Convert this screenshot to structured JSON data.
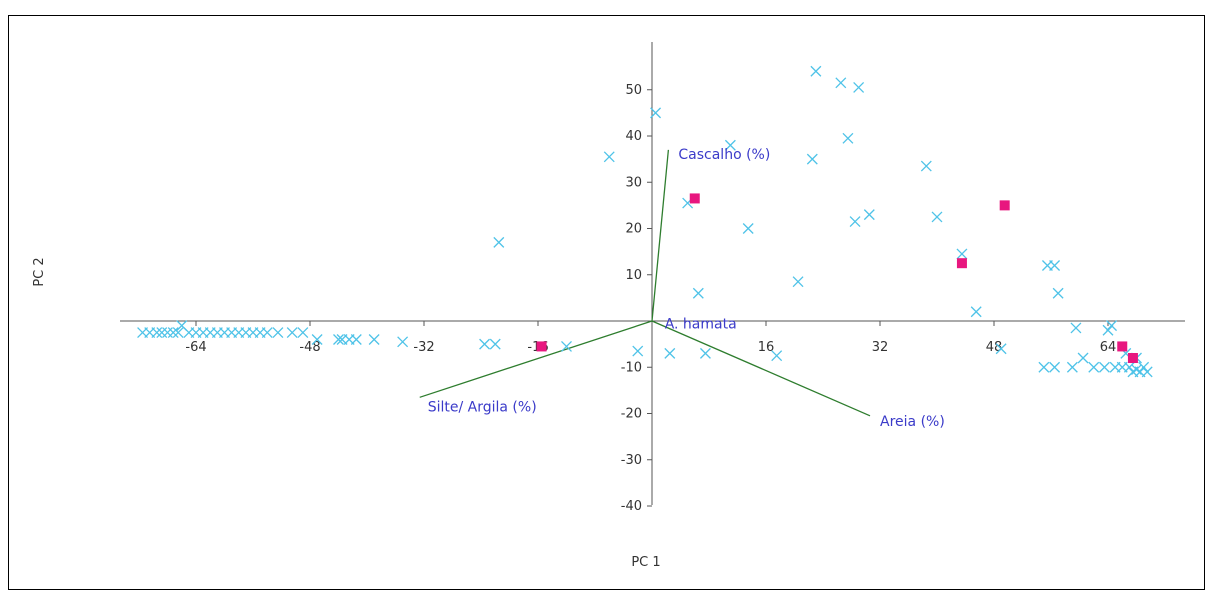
{
  "chart_data": {
    "type": "scatter",
    "xlabel": "PC 1",
    "ylabel": "PC 2",
    "x_ticks": [
      -64,
      -48,
      -32,
      -16,
      16,
      32,
      48,
      64
    ],
    "y_ticks": [
      50,
      40,
      30,
      20,
      10,
      -10,
      -20,
      -30,
      -40
    ],
    "xlim": [
      -75,
      75
    ],
    "ylim": [
      -43,
      60
    ],
    "grid": false,
    "colors": {
      "cross": "#4fc3e8",
      "square": "#e8177f",
      "vector": "#2e7d2e",
      "vector_label": "#3b3bc9"
    },
    "series": [
      {
        "marker": "cross",
        "points": [
          [
            -71.5,
            -2.5
          ],
          [
            -70.5,
            -2.5
          ],
          [
            -69.5,
            -2.5
          ],
          [
            -68.8,
            -2.5
          ],
          [
            -68,
            -2.5
          ],
          [
            -67.2,
            -2.5
          ],
          [
            -66.5,
            -2.5
          ],
          [
            -66,
            -1
          ],
          [
            -65,
            -2.5
          ],
          [
            -64,
            -2.5
          ],
          [
            -63,
            -2.5
          ],
          [
            -62,
            -2.5
          ],
          [
            -61,
            -2.5
          ],
          [
            -60,
            -2.5
          ],
          [
            -59,
            -2.5
          ],
          [
            -58,
            -2.5
          ],
          [
            -57,
            -2.5
          ],
          [
            -56,
            -2.5
          ],
          [
            -55,
            -2.5
          ],
          [
            -54,
            -2.5
          ],
          [
            -52.5,
            -2.5
          ],
          [
            -50.5,
            -2.5
          ],
          [
            -49,
            -2.5
          ],
          [
            -47,
            -4
          ],
          [
            -44,
            -4
          ],
          [
            -43.5,
            -4
          ],
          [
            -42.5,
            -4
          ],
          [
            -41.5,
            -4
          ],
          [
            -39,
            -4
          ],
          [
            -35,
            -4.5
          ],
          [
            -23.5,
            -5
          ],
          [
            -22,
            -5
          ],
          [
            -21.5,
            17
          ],
          [
            -12,
            -5.5
          ],
          [
            -6,
            35.5
          ],
          [
            -2,
            -6.5
          ],
          [
            0.5,
            45
          ],
          [
            2.5,
            -7
          ],
          [
            5,
            25.5
          ],
          [
            6.5,
            6
          ],
          [
            7.5,
            -7
          ],
          [
            11,
            38
          ],
          [
            13.5,
            20
          ],
          [
            17.5,
            -7.5
          ],
          [
            20.5,
            8.5
          ],
          [
            22.5,
            35
          ],
          [
            23,
            54
          ],
          [
            26.5,
            51.5
          ],
          [
            27.5,
            39.5
          ],
          [
            28.5,
            21.5
          ],
          [
            29,
            50.5
          ],
          [
            30.5,
            23
          ],
          [
            38.5,
            33.5
          ],
          [
            40,
            22.5
          ],
          [
            43.5,
            14.5
          ],
          [
            45.5,
            2
          ],
          [
            49,
            -6
          ],
          [
            55,
            -10
          ],
          [
            55.5,
            12
          ],
          [
            56.5,
            -10
          ],
          [
            56.5,
            12
          ],
          [
            57,
            6
          ],
          [
            59,
            -10
          ],
          [
            59.5,
            -1.5
          ],
          [
            60.5,
            -8
          ],
          [
            62,
            -10
          ],
          [
            63.5,
            -10
          ],
          [
            64,
            -2
          ],
          [
            64.5,
            -1
          ],
          [
            65,
            -10
          ],
          [
            66,
            -10
          ],
          [
            66.5,
            -7
          ],
          [
            67,
            -10
          ],
          [
            67.5,
            -11
          ],
          [
            68,
            -8
          ],
          [
            68,
            -10.5
          ],
          [
            68.5,
            -11
          ],
          [
            69,
            -10
          ],
          [
            69.5,
            -11
          ]
        ]
      },
      {
        "marker": "square",
        "points": [
          [
            -15.5,
            -5.5
          ],
          [
            6,
            26.5
          ],
          [
            43.5,
            12.5
          ],
          [
            49.5,
            25
          ],
          [
            66,
            -5.5
          ],
          [
            67.5,
            -8
          ]
        ]
      }
    ],
    "vectors": [
      {
        "label": "Cascalho (%)",
        "x": 2.3,
        "y": 37
      },
      {
        "label": "Silte/ Argila (%)",
        "x": -32.6,
        "y": -16.5
      },
      {
        "label": "Areia (%)",
        "x": 30.6,
        "y": -20.5
      }
    ],
    "annotations": [
      {
        "text": "A. hamata",
        "x": 1.5,
        "y": -0.5
      }
    ]
  }
}
